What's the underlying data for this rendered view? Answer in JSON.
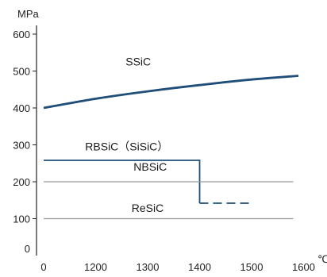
{
  "chart_data": {
    "type": "line",
    "ylabel": "MPa",
    "xlabel": "℃",
    "ylim": [
      0,
      600
    ],
    "y_ticks": [
      0,
      100,
      200,
      300,
      400,
      500,
      600
    ],
    "x_ticks": [
      "0",
      "1200",
      "1300",
      "1400",
      "1500",
      "1600"
    ],
    "x_tick_values": [
      1100,
      1200,
      1300,
      1400,
      1500,
      1600
    ],
    "grid": false,
    "series": [
      {
        "name": "SSiC",
        "color": "#1f4e79",
        "style": "solid",
        "x": [
          1100,
          1200,
          1300,
          1400,
          1500,
          1590
        ],
        "y": [
          400,
          425,
          445,
          462,
          477,
          487
        ]
      },
      {
        "name": "RBSiC（SiSiC）",
        "color": "#1f4e79",
        "style": "solid",
        "x": [
          1100,
          1400,
          1400
        ],
        "y": [
          258,
          258,
          142
        ]
      },
      {
        "name": "RBSiC（SiSiC）",
        "color": "#1f4e79",
        "style": "dashed",
        "x": [
          1400,
          1500
        ],
        "y": [
          142,
          142
        ]
      },
      {
        "name": "NBSiC",
        "color": "#9a9a9a",
        "style": "solid",
        "x": [
          1100,
          1580
        ],
        "y": [
          200,
          200
        ]
      },
      {
        "name": "ReSiC",
        "color": "#9a9a9a",
        "style": "solid",
        "x": [
          1100,
          1580
        ],
        "y": [
          100,
          100
        ]
      }
    ],
    "annotations": [
      {
        "text": "SSiC",
        "x": 1282,
        "y": 515
      },
      {
        "text": "RBSiC（SiSiC）",
        "x": 1260,
        "y": 285
      },
      {
        "text": "NBSiC",
        "x": 1305,
        "y": 230
      },
      {
        "text": "ReSiC",
        "x": 1300,
        "y": 118
      }
    ]
  }
}
